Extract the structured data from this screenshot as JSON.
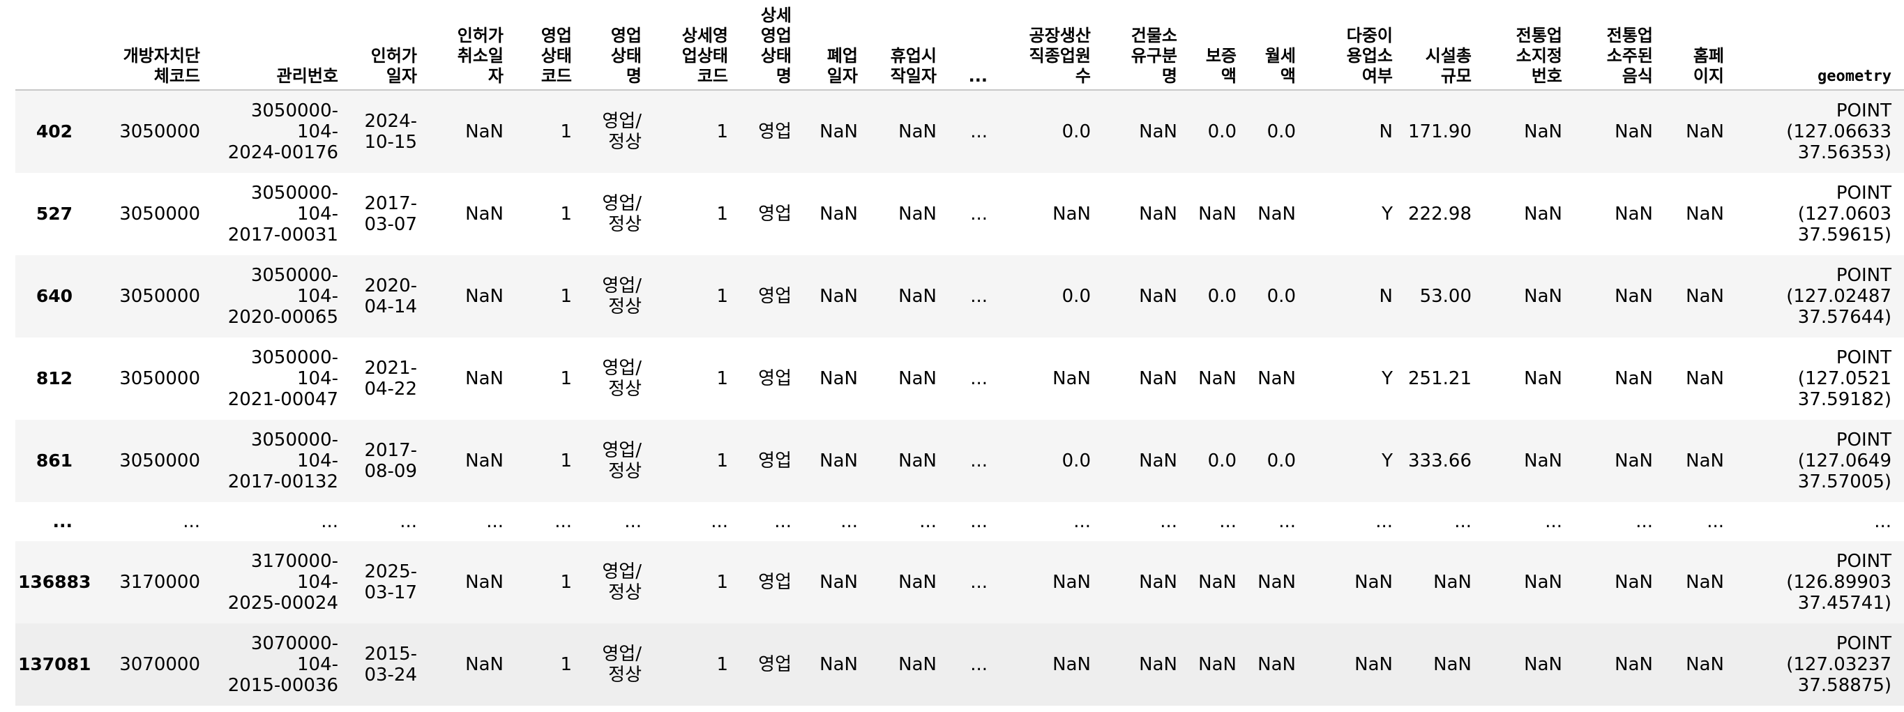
{
  "table": {
    "columns": [
      {
        "key": "idx",
        "label": ""
      },
      {
        "key": "c1",
        "label": "개방자치단\n체코드"
      },
      {
        "key": "c2",
        "label": "관리번호"
      },
      {
        "key": "c3",
        "label": "인허가\n일자"
      },
      {
        "key": "c4",
        "label": "인허가\n취소일\n자"
      },
      {
        "key": "c5",
        "label": "영업\n상태\n코드"
      },
      {
        "key": "c6",
        "label": "영업\n상태\n명"
      },
      {
        "key": "c7",
        "label": "상세영\n업상태\n코드"
      },
      {
        "key": "c8",
        "label": "상세\n영업\n상태\n명"
      },
      {
        "key": "c9",
        "label": "폐업\n일자"
      },
      {
        "key": "c10",
        "label": "휴업시\n작일자"
      },
      {
        "key": "c11",
        "label": "..."
      },
      {
        "key": "c12",
        "label": "공장생산\n직종업원\n수"
      },
      {
        "key": "c13",
        "label": "건물소\n유구분\n명"
      },
      {
        "key": "c14",
        "label": "보증\n액"
      },
      {
        "key": "c15",
        "label": "월세\n액"
      },
      {
        "key": "c16",
        "label": "다중이\n용업소\n여부"
      },
      {
        "key": "c17",
        "label": "시설총\n규모"
      },
      {
        "key": "c18",
        "label": "전통업\n소지정\n번호"
      },
      {
        "key": "c19",
        "label": "전통업\n소주된\n음식"
      },
      {
        "key": "c20",
        "label": "홈페\n이지"
      },
      {
        "key": "c21",
        "label": "geometry"
      }
    ],
    "rows": [
      [
        "402",
        "3050000",
        "3050000-104-\n2024-00176",
        "2024-\n10-15",
        "NaN",
        "1",
        "영업/\n정상",
        "1",
        "영업",
        "NaN",
        "NaN",
        "...",
        "0.0",
        "NaN",
        "0.0",
        "0.0",
        "N",
        "171.90",
        "NaN",
        "NaN",
        "NaN",
        "POINT\n(127.06633\n37.56353)"
      ],
      [
        "527",
        "3050000",
        "3050000-104-\n2017-00031",
        "2017-\n03-07",
        "NaN",
        "1",
        "영업/\n정상",
        "1",
        "영업",
        "NaN",
        "NaN",
        "...",
        "NaN",
        "NaN",
        "NaN",
        "NaN",
        "Y",
        "222.98",
        "NaN",
        "NaN",
        "NaN",
        "POINT\n(127.0603\n37.59615)"
      ],
      [
        "640",
        "3050000",
        "3050000-104-\n2020-00065",
        "2020-\n04-14",
        "NaN",
        "1",
        "영업/\n정상",
        "1",
        "영업",
        "NaN",
        "NaN",
        "...",
        "0.0",
        "NaN",
        "0.0",
        "0.0",
        "N",
        "53.00",
        "NaN",
        "NaN",
        "NaN",
        "POINT\n(127.02487\n37.57644)"
      ],
      [
        "812",
        "3050000",
        "3050000-104-\n2021-00047",
        "2021-\n04-22",
        "NaN",
        "1",
        "영업/\n정상",
        "1",
        "영업",
        "NaN",
        "NaN",
        "...",
        "NaN",
        "NaN",
        "NaN",
        "NaN",
        "Y",
        "251.21",
        "NaN",
        "NaN",
        "NaN",
        "POINT\n(127.0521\n37.59182)"
      ],
      [
        "861",
        "3050000",
        "3050000-104-\n2017-00132",
        "2017-\n08-09",
        "NaN",
        "1",
        "영업/\n정상",
        "1",
        "영업",
        "NaN",
        "NaN",
        "...",
        "0.0",
        "NaN",
        "0.0",
        "0.0",
        "Y",
        "333.66",
        "NaN",
        "NaN",
        "NaN",
        "POINT\n(127.0649\n37.57005)"
      ],
      [
        "...",
        "...",
        "...",
        "...",
        "...",
        "...",
        "...",
        "...",
        "...",
        "...",
        "...",
        "...",
        "...",
        "...",
        "...",
        "...",
        "...",
        "...",
        "...",
        "...",
        "...",
        "..."
      ],
      [
        "136883",
        "3170000",
        "3170000-104-\n2025-00024",
        "2025-\n03-17",
        "NaN",
        "1",
        "영업/\n정상",
        "1",
        "영업",
        "NaN",
        "NaN",
        "...",
        "NaN",
        "NaN",
        "NaN",
        "NaN",
        "NaN",
        "NaN",
        "NaN",
        "NaN",
        "NaN",
        "POINT\n(126.89903\n37.45741)"
      ],
      [
        "137081",
        "3070000",
        "3070000-104-\n2015-00036",
        "2015-\n03-24",
        "NaN",
        "1",
        "영업/\n정상",
        "1",
        "영업",
        "NaN",
        "NaN",
        "...",
        "NaN",
        "NaN",
        "NaN",
        "NaN",
        "NaN",
        "NaN",
        "NaN",
        "NaN",
        "NaN",
        "POINT\n(127.03237\n37.58875)"
      ]
    ]
  }
}
